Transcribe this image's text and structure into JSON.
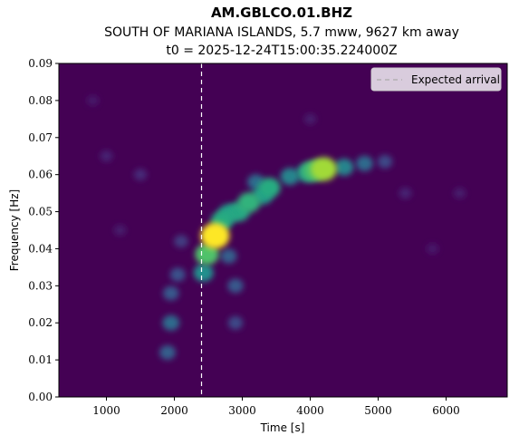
{
  "chart_data": {
    "type": "heatmap",
    "title": "AM.GBLCO.01.BHZ",
    "subtitle_event": "SOUTH OF MARIANA ISLANDS, 5.7 mww, 9627 km away",
    "subtitle_t0": "t0 = 2025-12-24T15:00:35.224000Z",
    "xlabel": "Time [s]",
    "ylabel": "Frequency [Hz]",
    "xlim": [
      300,
      6900
    ],
    "ylim": [
      0,
      0.09
    ],
    "x_ticks": [
      1000,
      2000,
      3000,
      4000,
      5000,
      6000
    ],
    "y_ticks": [
      0.0,
      0.01,
      0.02,
      0.03,
      0.04,
      0.05,
      0.06,
      0.07,
      0.08,
      0.09
    ],
    "x_tick_labels": [
      "1000",
      "2000",
      "3000",
      "4000",
      "5000",
      "6000"
    ],
    "y_tick_labels": [
      "0.00",
      "0.01",
      "0.02",
      "0.03",
      "0.04",
      "0.05",
      "0.06",
      "0.07",
      "0.08",
      "0.09"
    ],
    "colormap": "viridis",
    "background_color": "#440154",
    "expected_arrival": {
      "time": 2400,
      "label": "Expected arrival",
      "style": "dashed",
      "color": "#ffffff"
    },
    "legend": {
      "position": "top-right",
      "entries": [
        "Expected arrival"
      ]
    },
    "energy_blobs": [
      {
        "t": 2600,
        "f": 0.0435,
        "intensity": 1.0
      },
      {
        "t": 2480,
        "f": 0.0385,
        "intensity": 0.72
      },
      {
        "t": 2430,
        "f": 0.0335,
        "intensity": 0.5
      },
      {
        "t": 2700,
        "f": 0.0475,
        "intensity": 0.62
      },
      {
        "t": 2800,
        "f": 0.0495,
        "intensity": 0.55
      },
      {
        "t": 2950,
        "f": 0.05,
        "intensity": 0.6
      },
      {
        "t": 3100,
        "f": 0.0525,
        "intensity": 0.65
      },
      {
        "t": 3400,
        "f": 0.0565,
        "intensity": 0.62
      },
      {
        "t": 3300,
        "f": 0.0545,
        "intensity": 0.55
      },
      {
        "t": 3700,
        "f": 0.0595,
        "intensity": 0.45
      },
      {
        "t": 3950,
        "f": 0.0605,
        "intensity": 0.55
      },
      {
        "t": 4200,
        "f": 0.0615,
        "intensity": 0.86
      },
      {
        "t": 4050,
        "f": 0.061,
        "intensity": 0.7
      },
      {
        "t": 4500,
        "f": 0.062,
        "intensity": 0.45
      },
      {
        "t": 4800,
        "f": 0.063,
        "intensity": 0.35
      },
      {
        "t": 5100,
        "f": 0.0635,
        "intensity": 0.22
      },
      {
        "t": 3200,
        "f": 0.058,
        "intensity": 0.35
      },
      {
        "t": 1950,
        "f": 0.02,
        "intensity": 0.35
      },
      {
        "t": 1900,
        "f": 0.012,
        "intensity": 0.3
      },
      {
        "t": 1950,
        "f": 0.028,
        "intensity": 0.28
      },
      {
        "t": 2050,
        "f": 0.033,
        "intensity": 0.25
      },
      {
        "t": 2900,
        "f": 0.03,
        "intensity": 0.28
      },
      {
        "t": 2900,
        "f": 0.02,
        "intensity": 0.22
      },
      {
        "t": 2800,
        "f": 0.038,
        "intensity": 0.3
      },
      {
        "t": 2100,
        "f": 0.042,
        "intensity": 0.18
      },
      {
        "t": 1500,
        "f": 0.06,
        "intensity": 0.12
      },
      {
        "t": 1000,
        "f": 0.065,
        "intensity": 0.1
      },
      {
        "t": 1200,
        "f": 0.045,
        "intensity": 0.08
      },
      {
        "t": 5400,
        "f": 0.055,
        "intensity": 0.1
      },
      {
        "t": 6200,
        "f": 0.055,
        "intensity": 0.08
      },
      {
        "t": 5800,
        "f": 0.04,
        "intensity": 0.07
      },
      {
        "t": 4000,
        "f": 0.075,
        "intensity": 0.08
      },
      {
        "t": 800,
        "f": 0.08,
        "intensity": 0.07
      }
    ]
  }
}
